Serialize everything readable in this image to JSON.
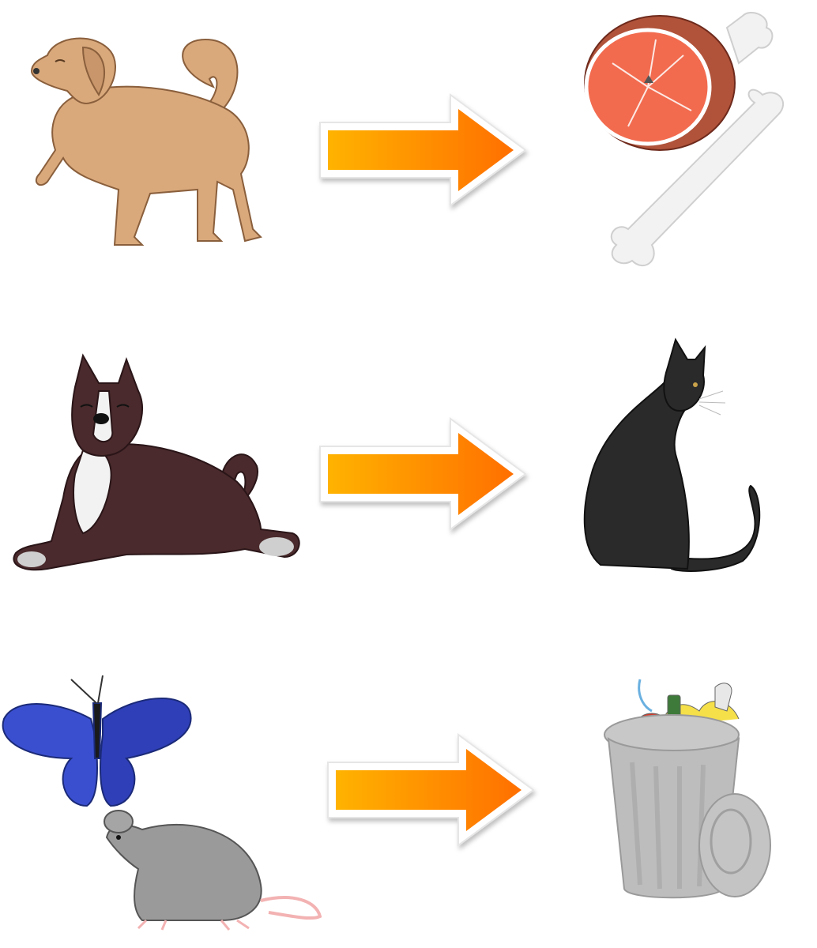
{
  "rows": [
    {
      "subject": "golden-dog-icon",
      "relation": "arrow-icon",
      "target": "meat-bone-icon"
    },
    {
      "subject": "pitbull-dog-icon",
      "relation": "arrow-icon",
      "target": "black-cat-icon"
    },
    {
      "subject": "butterfly-and-rat-icon",
      "relation": "arrow-icon",
      "target": "trash-can-icon"
    }
  ],
  "colors": {
    "arrow_start": "#ffb300",
    "arrow_end": "#ff6f00",
    "dog_tan": "#d9a97c",
    "dog_brown": "#4a2a2c",
    "meat": "#f26b4f",
    "cat": "#2a2a2a",
    "butterfly": "#3a4fd0",
    "rat": "#9a9a9a",
    "trash": "#b8b8b8"
  }
}
